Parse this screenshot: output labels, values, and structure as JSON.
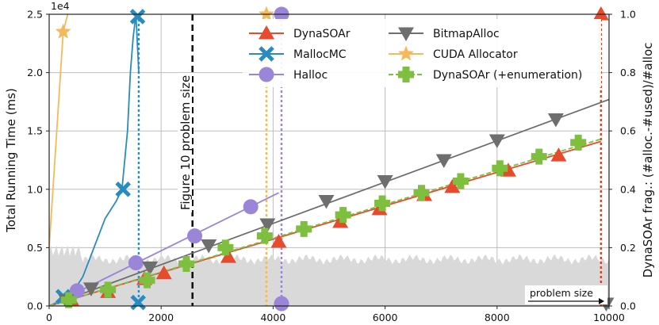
{
  "chart_data": {
    "type": "line",
    "xlabel": "problem size",
    "ylabel": "Total Running Time (ms)",
    "y_scale_note": "1e4",
    "y2label": "DynaSOAr frag.: (#alloc.-#used)/#alloc",
    "annotation": "Figure 10 problem size",
    "xlim": [
      0,
      10000
    ],
    "ylim": [
      0,
      2.5
    ],
    "y2lim": [
      0,
      1.0
    ],
    "xticks": [
      "0",
      "2000",
      "4000",
      "6000",
      "8000",
      "10000"
    ],
    "yticks": [
      "0.0",
      "0.5",
      "1.0",
      "1.5",
      "2.0",
      "2.5"
    ],
    "y2ticks": [
      "0.0",
      "0.2",
      "0.4",
      "0.6",
      "0.8",
      "1.0"
    ],
    "markers_x": [
      64,
      512,
      960,
      1408,
      1856,
      2304,
      2752,
      3200,
      3648,
      4096,
      4544,
      4992,
      5440,
      5888,
      6336,
      6784,
      7232,
      7680,
      8128,
      8576,
      9024,
      9472,
      9856
    ],
    "series": [
      {
        "name": "DynaSOAr",
        "color": "#e84a2e",
        "marker": "triangle-up",
        "x": [
          0,
          9856
        ],
        "y": [
          0.0,
          1.41
        ],
        "marker_x": [
          400,
          1050,
          1700,
          2050,
          3200,
          4100,
          5200,
          5900,
          6700,
          7200,
          8200,
          9100,
          9856
        ],
        "marker_y": [
          0.05,
          0.12,
          0.23,
          0.28,
          0.42,
          0.55,
          0.72,
          0.83,
          0.95,
          1.02,
          1.16,
          1.29,
          2.5
        ]
      },
      {
        "name": "MallocMC",
        "color": "#2a8bbf",
        "marker": "x",
        "x": [
          0,
          200,
          400,
          600,
          800,
          1000,
          1200,
          1300,
          1400,
          1450,
          1500,
          1550,
          1600
        ],
        "y": [
          0.0,
          0.04,
          0.1,
          0.25,
          0.5,
          0.75,
          0.9,
          1.0,
          1.5,
          2.0,
          2.3,
          2.5,
          2.0
        ],
        "marker_x": [
          250,
          1320,
          1580,
          1590
        ],
        "marker_y": [
          0.08,
          1.0,
          2.48,
          0.03
        ],
        "cutoff_x": 1600
      },
      {
        "name": "Halloc",
        "color": "#9a85d8",
        "marker": "circle",
        "x": [
          0,
          4100
        ],
        "y": [
          0.0,
          0.97
        ],
        "marker_x": [
          500,
          1550,
          2600,
          3600,
          4150,
          4150
        ],
        "marker_y": [
          0.13,
          0.37,
          0.6,
          0.85,
          2.5,
          0.02
        ],
        "cutoff_x": 4150
      },
      {
        "name": "BitmapAlloc",
        "color": "#6e6e6e",
        "marker": "triangle-down",
        "x": [
          0,
          10000
        ],
        "y": [
          0.0,
          1.77
        ],
        "marker_x": [
          300,
          750,
          1800,
          2850,
          3900,
          4950,
          6000,
          7050,
          8000,
          9050,
          9950
        ],
        "marker_y": [
          0.05,
          0.15,
          0.33,
          0.52,
          0.7,
          0.9,
          1.07,
          1.25,
          1.42,
          1.6,
          0.02
        ]
      },
      {
        "name": "CUDA Allocator",
        "color": "#f5b95b",
        "marker": "star",
        "x": [
          0,
          250,
          330
        ],
        "y": [
          0.5,
          2.35,
          2.5
        ],
        "marker_x": [
          250,
          3880
        ],
        "marker_y": [
          2.35,
          2.5
        ],
        "cutoff_x": 3880
      },
      {
        "name": "DynaSOAr (+enumeration)",
        "color": "#7fbf3f",
        "marker": "plus",
        "x": [
          0,
          9856
        ],
        "y": [
          0.0,
          1.43
        ],
        "marker_x": [
          350,
          1050,
          1750,
          2450,
          3150,
          3850,
          4550,
          5250,
          5950,
          6650,
          7350,
          8050,
          8750,
          9450
        ],
        "marker_y": [
          0.05,
          0.14,
          0.22,
          0.36,
          0.5,
          0.6,
          0.66,
          0.78,
          0.88,
          0.97,
          1.07,
          1.18,
          1.28,
          1.4
        ]
      }
    ],
    "fragmentation_band": {
      "color": "#d9d9d9",
      "level": 0.16,
      "jitter": 0.02,
      "start": 0.19
    },
    "vertical_lines": [
      {
        "x": 2560,
        "color": "#111111",
        "style": "bold-dashed"
      },
      {
        "x": 1600,
        "color": "#2a8bbf",
        "style": "dotted"
      },
      {
        "x": 3880,
        "color": "#f5b95b",
        "style": "dotted"
      },
      {
        "x": 4150,
        "color": "#9a85d8",
        "style": "dotted"
      },
      {
        "x": 9856,
        "color": "#c9472d",
        "style": "dotted"
      }
    ]
  }
}
